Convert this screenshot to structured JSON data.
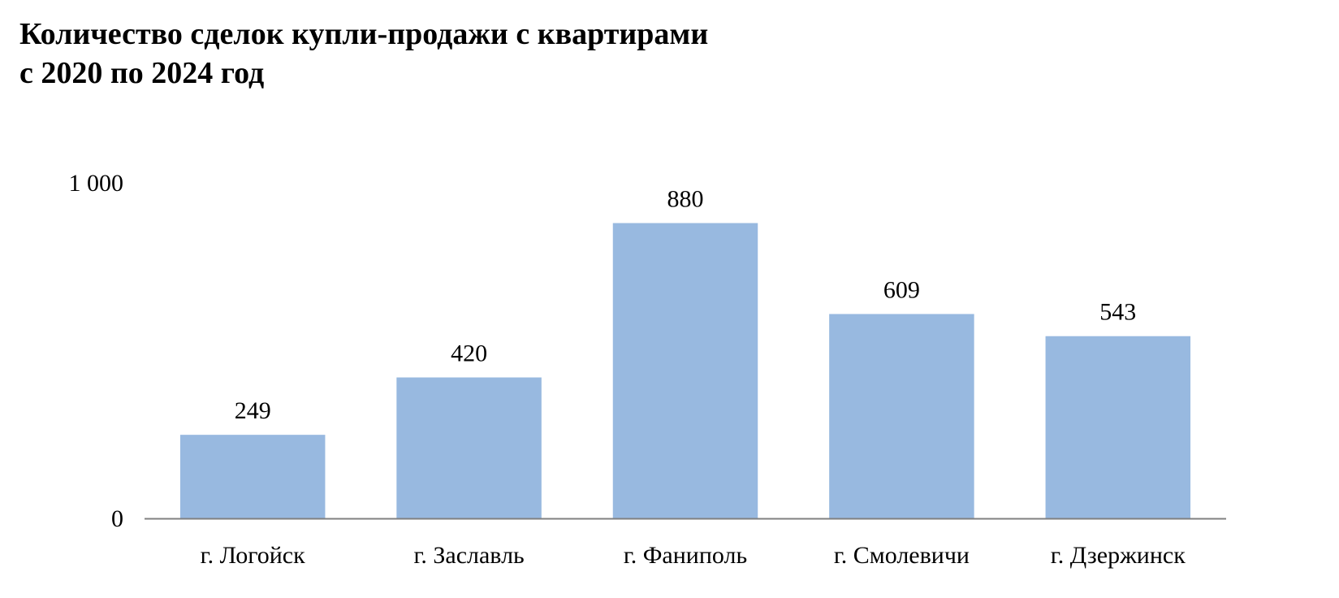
{
  "chart_data": {
    "type": "bar",
    "title_line1": "Количество сделок купли-продажи с квартирами",
    "title_line2": "с 2020 по 2024 год",
    "categories": [
      "г. Логойск",
      "г. Заславль",
      "г. Фаниполь",
      "г. Смолевичи",
      "г. Дзержинск"
    ],
    "values": [
      249,
      420,
      880,
      609,
      543
    ],
    "y_ticks": [
      {
        "value": 0,
        "label": "0"
      },
      {
        "value": 1000,
        "label": "1 000"
      }
    ],
    "ylim": [
      0,
      1000
    ],
    "grid": false,
    "legend": "none",
    "bar_color": "#98B9E0",
    "axis_color": "#808080"
  }
}
